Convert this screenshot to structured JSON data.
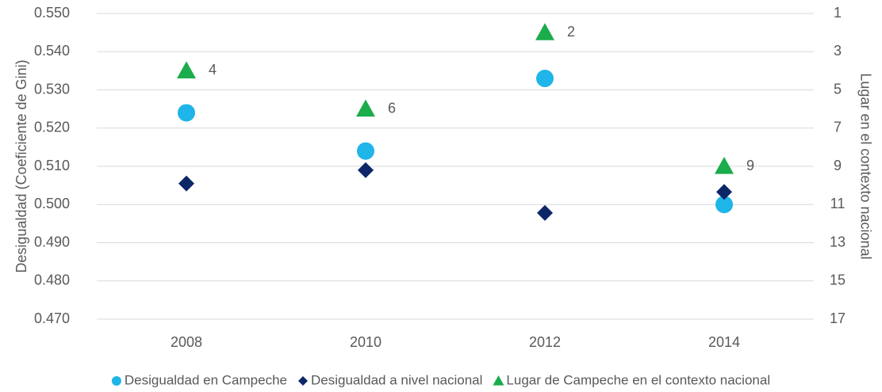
{
  "chart_data": {
    "type": "scatter",
    "y_label": "Desigualdad (Coeficiente de Gini)",
    "y2_label": "Lugar en el contexto nacional",
    "categories": [
      "2008",
      "2010",
      "2012",
      "2014"
    ],
    "series": [
      {
        "name": "Desigualdad en Campeche",
        "color": "#1fb5e8",
        "marker": "circle",
        "values": [
          0.524,
          0.514,
          0.533,
          0.5
        ]
      },
      {
        "name": "Desigualdad a nivel nacional",
        "color": "#0c2768",
        "marker": "diamond",
        "values": [
          0.5055,
          0.509,
          0.4978,
          0.5033
        ]
      },
      {
        "name": "Lugar de Campeche en el contexto nacional",
        "color": "#1bac4b",
        "marker": "triangle",
        "axis": "y2",
        "values": [
          4,
          6,
          2,
          9
        ],
        "data_labels": true
      }
    ],
    "ylim": [
      0.47,
      0.55
    ],
    "yticks": [
      {
        "value": 0.47,
        "label": "0.470"
      },
      {
        "value": 0.48,
        "label": "0.480"
      },
      {
        "value": 0.49,
        "label": "0.490"
      },
      {
        "value": 0.5,
        "label": "0.500"
      },
      {
        "value": 0.51,
        "label": "0.510"
      },
      {
        "value": 0.52,
        "label": "0.520"
      },
      {
        "value": 0.53,
        "label": "0.530"
      },
      {
        "value": 0.54,
        "label": "0.540"
      },
      {
        "value": 0.55,
        "label": "0.550"
      }
    ],
    "y2lim": [
      17,
      1
    ],
    "y2ticks": [
      1,
      3,
      5,
      7,
      9,
      11,
      13,
      15,
      17
    ],
    "grid": true,
    "legend": "bottom"
  }
}
